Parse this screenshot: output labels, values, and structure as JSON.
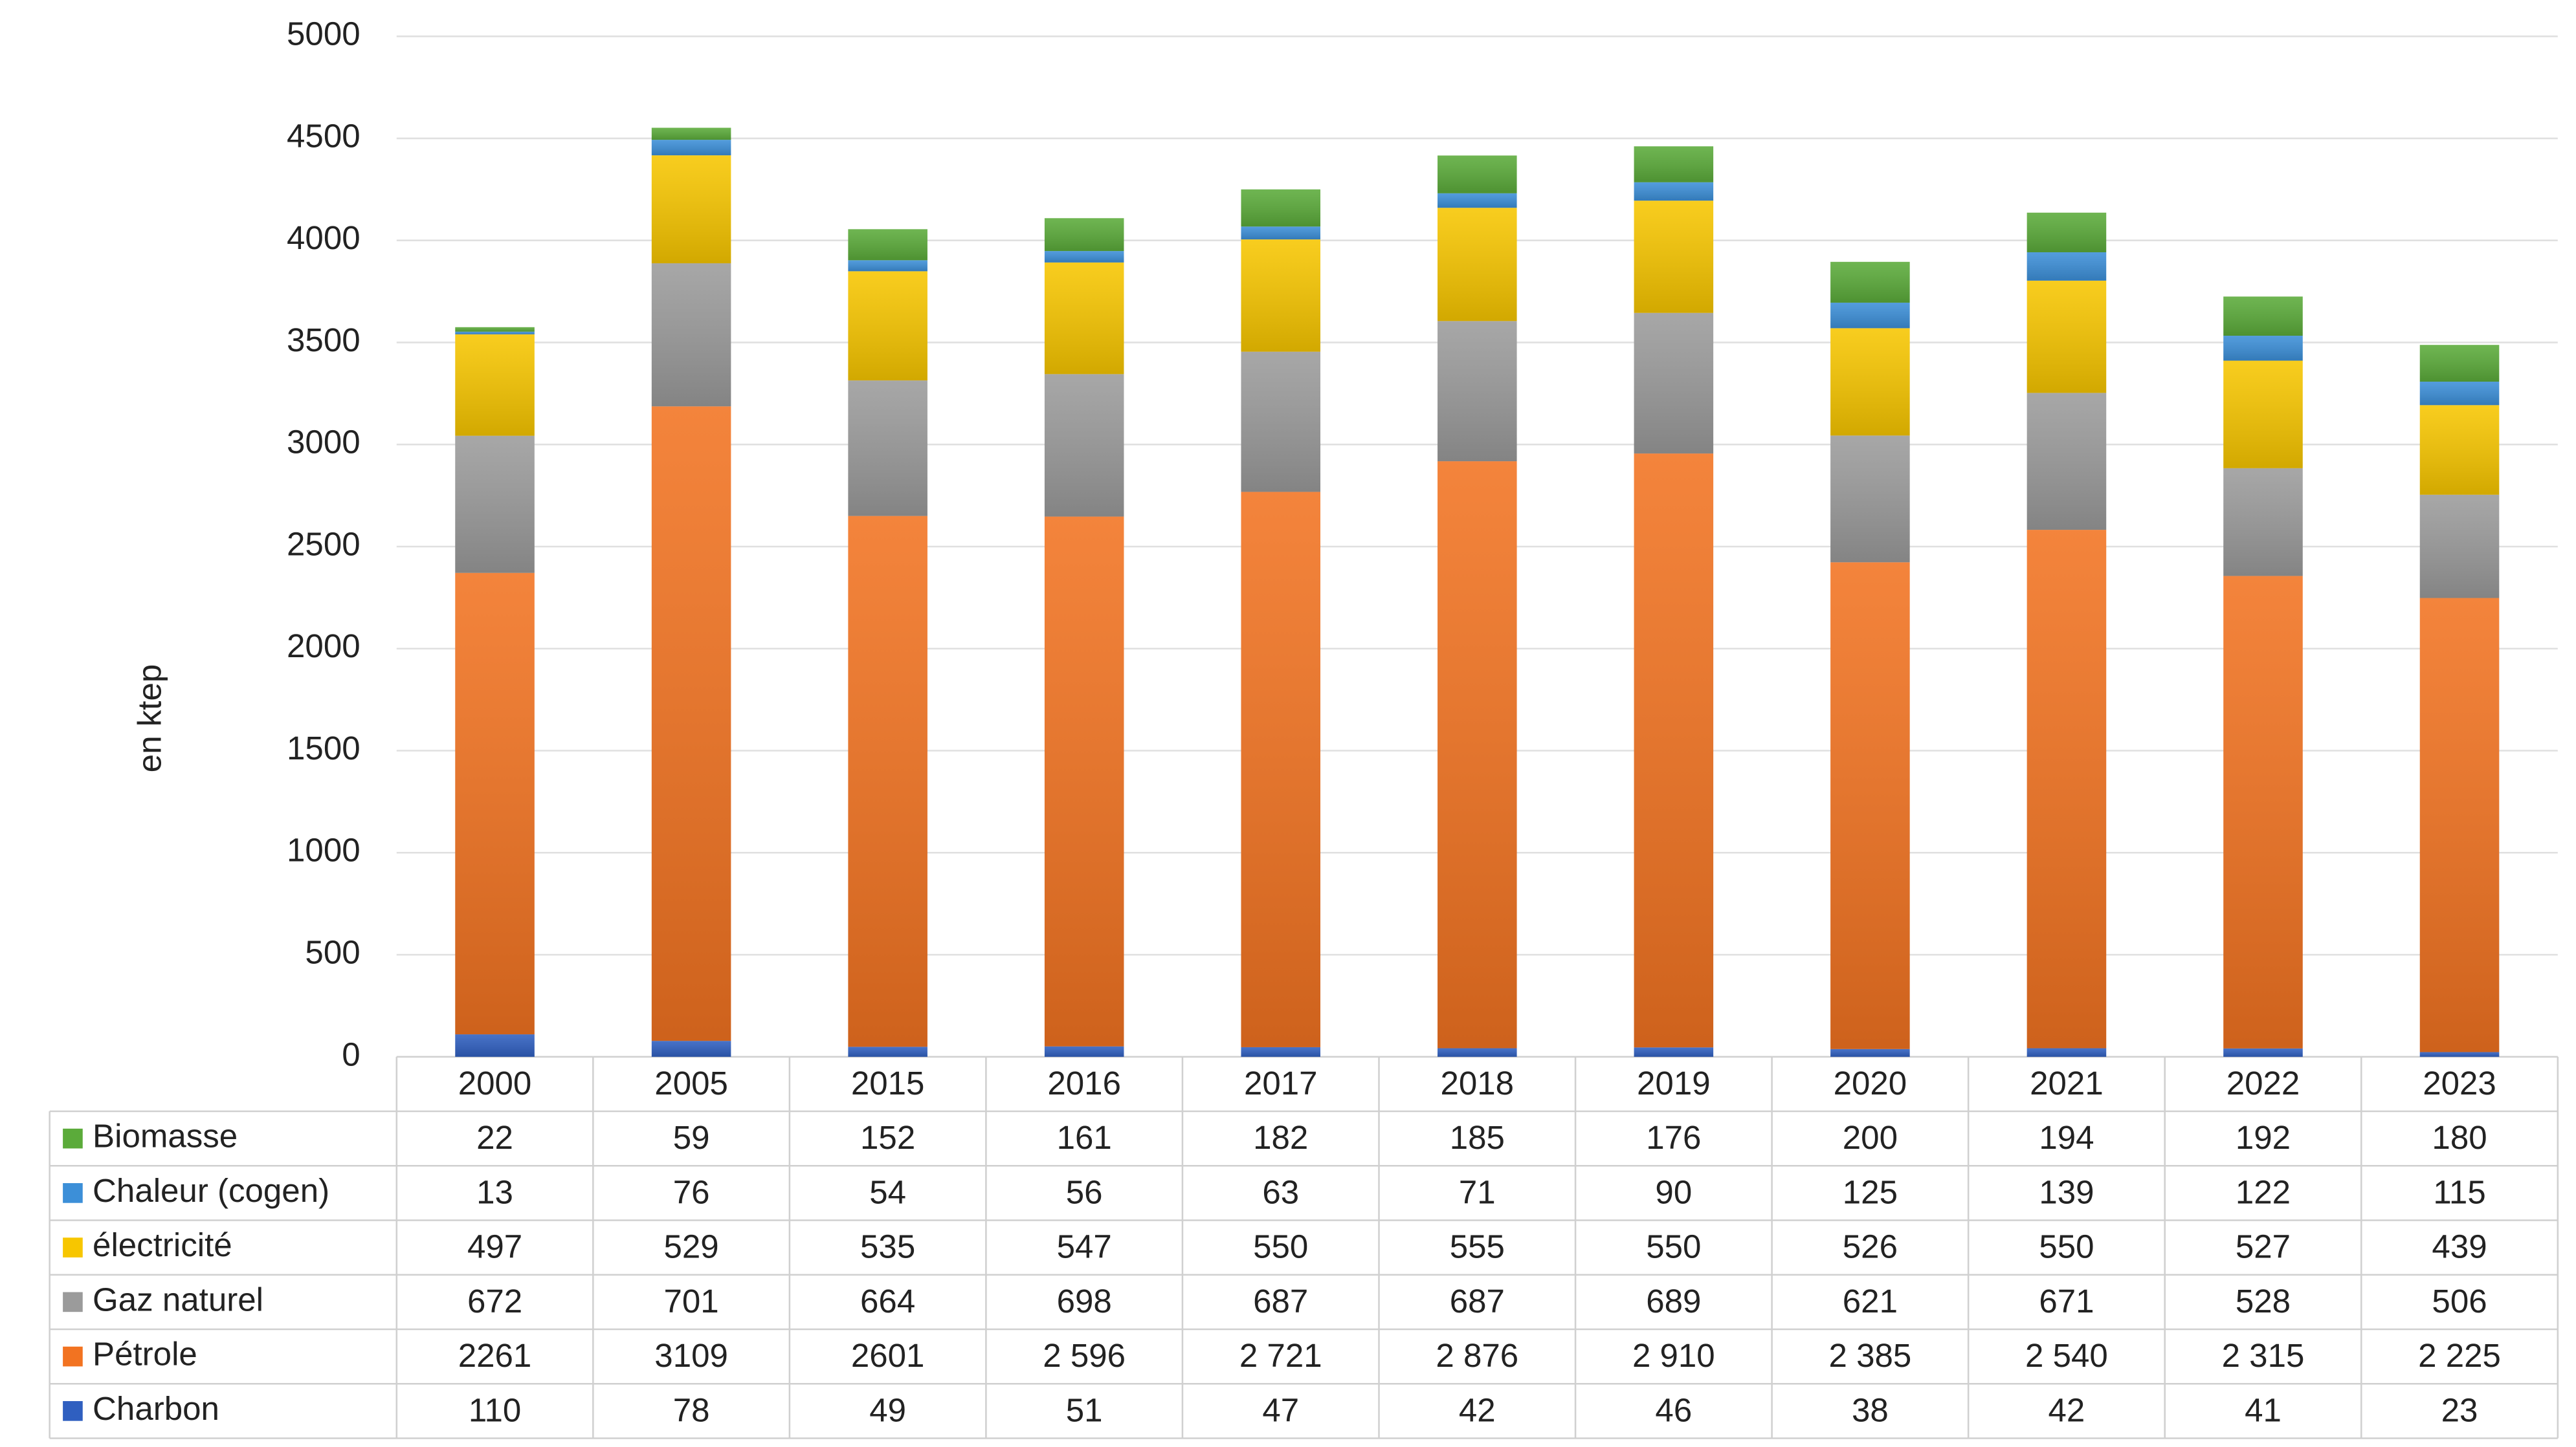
{
  "chart_data": {
    "type": "bar",
    "stacked": true,
    "y_label": "en ktep",
    "categories": [
      "2000",
      "2005",
      "2015",
      "2016",
      "2017",
      "2018",
      "2019",
      "2020",
      "2021",
      "2022",
      "2023"
    ],
    "series": [
      {
        "name": "Charbon",
        "color": "#2f5fc0",
        "values": [
          110,
          78,
          49,
          51,
          47,
          42,
          46,
          38,
          42,
          41,
          23
        ]
      },
      {
        "name": "Pétrole",
        "color": "#f27321",
        "values": [
          2261,
          3109,
          2601,
          2596,
          2721,
          2876,
          2910,
          2385,
          2540,
          2315,
          2225
        ],
        "value_labels": [
          "2261",
          "3109",
          "2601",
          "2 596",
          "2 721",
          "2 876",
          "2 910",
          "2 385",
          "2 540",
          "2 315",
          "2 225"
        ]
      },
      {
        "name": "Gaz naturel",
        "color": "#9b9b9b",
        "values": [
          672,
          701,
          664,
          698,
          687,
          687,
          689,
          621,
          671,
          528,
          506
        ]
      },
      {
        "name": "électricité",
        "color": "#f7c600",
        "values": [
          497,
          529,
          535,
          547,
          550,
          555,
          550,
          526,
          550,
          527,
          439
        ]
      },
      {
        "name": "Chaleur (cogen)",
        "color": "#3c8fd8",
        "values": [
          13,
          76,
          54,
          56,
          63,
          71,
          90,
          125,
          139,
          122,
          115
        ]
      },
      {
        "name": "Biomasse",
        "color": "#5bab3a",
        "values": [
          22,
          59,
          152,
          161,
          182,
          185,
          176,
          200,
          194,
          192,
          180
        ]
      }
    ],
    "ylim": [
      0,
      5000
    ],
    "yticks": [
      0,
      500,
      1000,
      1500,
      2000,
      2500,
      3000,
      3500,
      4000,
      4500,
      5000
    ],
    "grid": true
  }
}
